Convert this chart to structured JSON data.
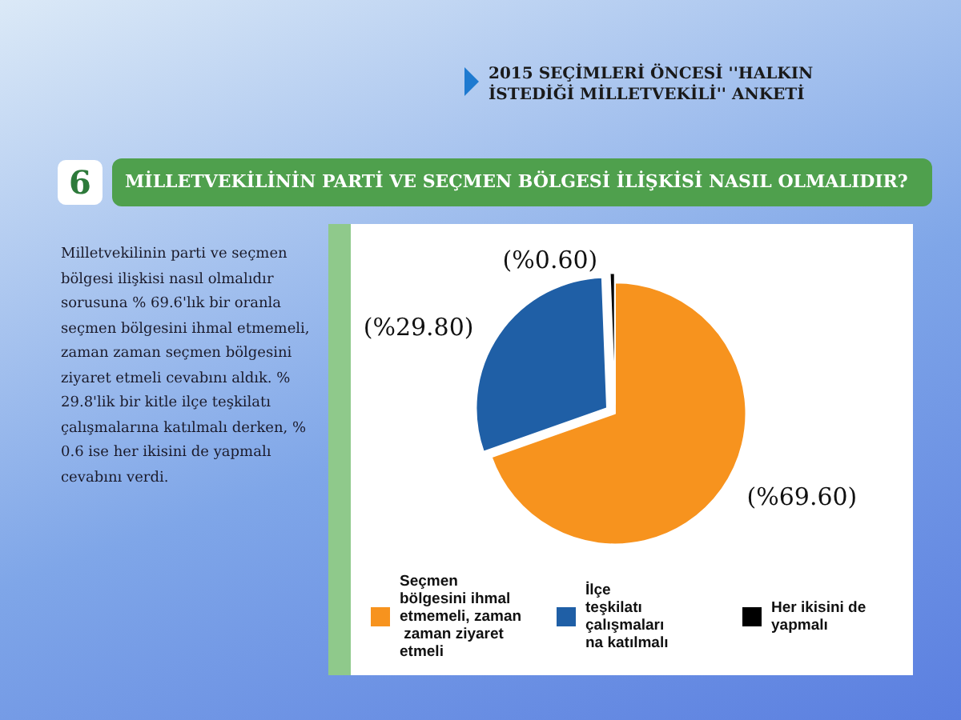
{
  "chart_data": {
    "type": "pie",
    "title": "MİLLETVEKİLİNİN PARTİ VE SEÇMEN BÖLGESİ İLİŞKİSİ NASIL OLMALIDIR?",
    "subtitle": "2015 SEÇİMLERİ ÖNCESİ ''HALKIN İSTEDİĞİ MİLLETVEKİLİ'' ANKETİ",
    "annotations": [
      "6",
      "Milletvekilinin parti ve seçmen bölgesi ilişkisi nasıl olmalıdır sorusuna % 69.6'lık bir oranla seçmen bölgesini ihmal etmemeli, zaman zaman seçmen bölgesini ziyaret etmeli cevabını aldık. % 29.8'lik bir kitle ilçe teşkilatı çalışmalarına katılmalı derken, % 0.6 ise her ikisini de yapmalı cevabını verdi."
    ],
    "categories": [
      "Seçmen bölgesini ihmal etmemeli, zaman zaman ziyaret etmeli",
      "İlçe teşkilatı çalışmalarına katılmalı",
      "Her ikisini de yapmalı"
    ],
    "values": [
      69.6,
      29.8,
      0.6
    ],
    "value_labels": [
      "(%69.60)",
      "(%29.80)",
      "(%0.60)"
    ],
    "colors": [
      "#f7931e",
      "#1f5fa6",
      "#000000"
    ],
    "legend": "bottom"
  }
}
